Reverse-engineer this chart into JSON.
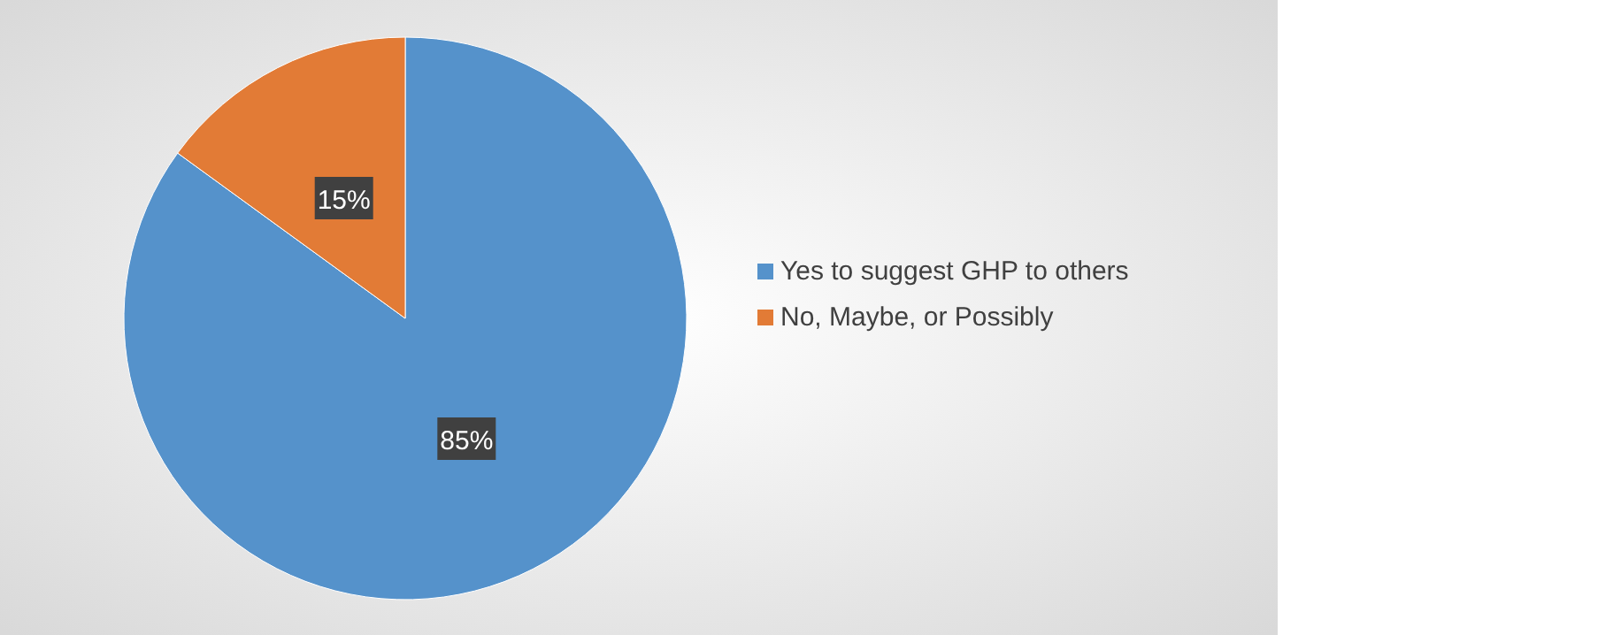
{
  "chart_data": {
    "type": "pie",
    "categories": [
      "Yes to suggest GHP to others",
      "No, Maybe, or Possibly"
    ],
    "values": [
      85,
      15
    ],
    "colors": [
      "#5592cb",
      "#e27b36"
    ],
    "value_labels": [
      "85%",
      "15%"
    ],
    "legend": "right"
  }
}
